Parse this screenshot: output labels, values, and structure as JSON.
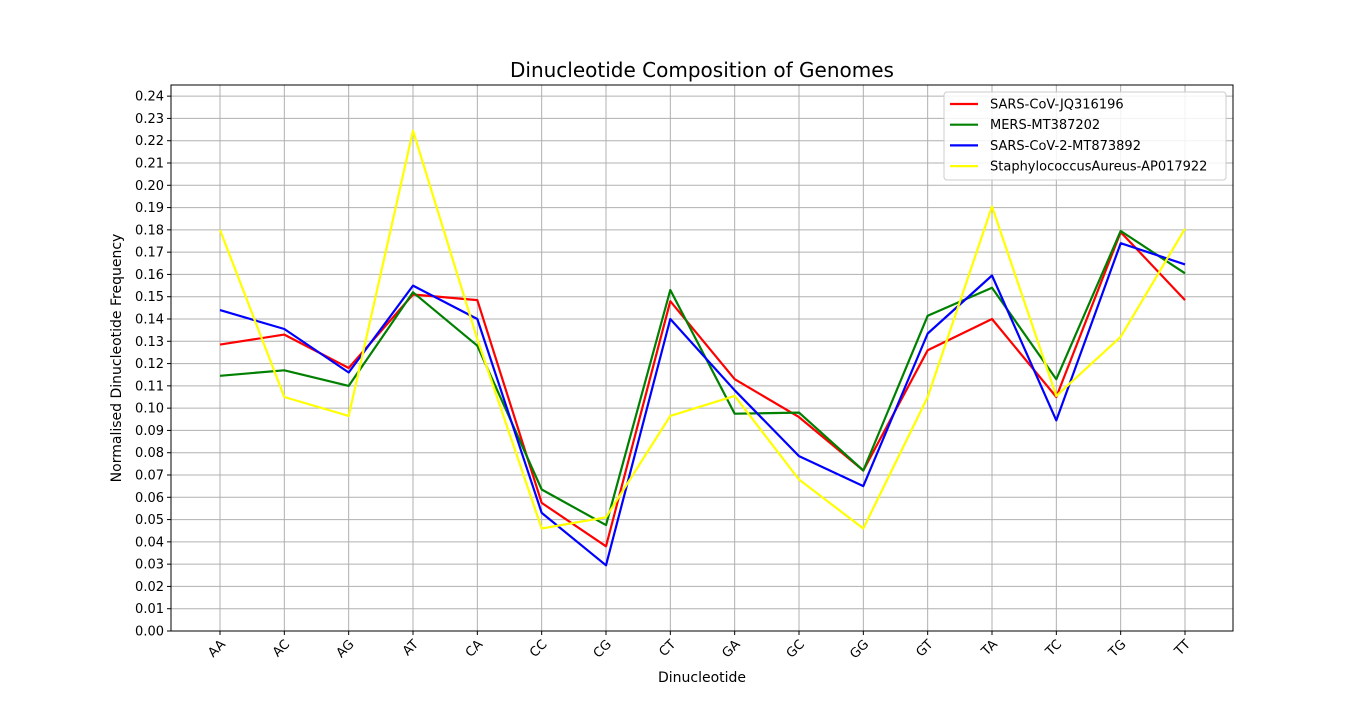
{
  "chart_data": {
    "type": "line",
    "title": "Dinucleotide Composition of Genomes",
    "xlabel": "Dinucleotide",
    "ylabel": "Normalised Dinucleotide Frequency",
    "categories": [
      "AA",
      "AC",
      "AG",
      "AT",
      "CA",
      "CC",
      "CG",
      "CT",
      "GA",
      "GC",
      "GG",
      "GT",
      "TA",
      "TC",
      "TG",
      "TT"
    ],
    "ylim": [
      0,
      0.245
    ],
    "y_ticks": [
      "0.00",
      "0.01",
      "0.02",
      "0.03",
      "0.04",
      "0.05",
      "0.06",
      "0.07",
      "0.08",
      "0.09",
      "0.10",
      "0.11",
      "0.12",
      "0.13",
      "0.14",
      "0.15",
      "0.16",
      "0.17",
      "0.18",
      "0.19",
      "0.20",
      "0.21",
      "0.22",
      "0.23",
      "0.24"
    ],
    "grid": true,
    "legend_position": "top-right",
    "series": [
      {
        "name": "SARS-CoV-JQ316196",
        "color": "#ff0000",
        "values": [
          0.1285,
          0.133,
          0.118,
          0.151,
          0.1485,
          0.0575,
          0.038,
          0.148,
          0.113,
          0.096,
          0.072,
          0.126,
          0.14,
          0.105,
          0.179,
          0.1485
        ]
      },
      {
        "name": "MERS-MT387202",
        "color": "#008000",
        "values": [
          0.1145,
          0.117,
          0.11,
          0.152,
          0.128,
          0.0635,
          0.0475,
          0.153,
          0.0975,
          0.098,
          0.072,
          0.1415,
          0.154,
          0.113,
          0.1795,
          0.1605
        ]
      },
      {
        "name": "SARS-CoV-2-MT873892",
        "color": "#0000ff",
        "values": [
          0.144,
          0.1355,
          0.116,
          0.155,
          0.14,
          0.053,
          0.0295,
          0.14,
          0.108,
          0.0785,
          0.065,
          0.1335,
          0.1595,
          0.0945,
          0.174,
          0.1645
        ]
      },
      {
        "name": "StaphylococcusAureus-AP017922",
        "color": "#ffff00",
        "values": [
          0.18,
          0.105,
          0.0965,
          0.2245,
          0.131,
          0.046,
          0.051,
          0.0965,
          0.1055,
          0.068,
          0.046,
          0.105,
          0.1905,
          0.1055,
          0.132,
          0.1805
        ]
      }
    ]
  }
}
